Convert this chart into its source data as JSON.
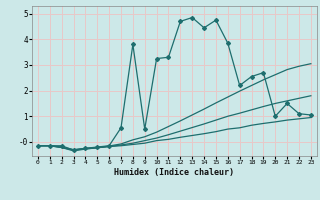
{
  "title": "",
  "xlabel": "Humidex (Indice chaleur)",
  "ylabel": "",
  "bg_color": "#cce8e8",
  "grid_color": "#e8c8c8",
  "line_color": "#1e6e6e",
  "xlim": [
    -0.5,
    23.5
  ],
  "ylim": [
    -0.55,
    5.3
  ],
  "yticks": [
    0,
    1,
    2,
    3,
    4,
    5
  ],
  "ytick_labels": [
    "-0",
    "1",
    "2",
    "3",
    "4",
    "5"
  ],
  "xticks": [
    0,
    1,
    2,
    3,
    4,
    5,
    6,
    7,
    8,
    9,
    10,
    11,
    12,
    13,
    14,
    15,
    16,
    17,
    18,
    19,
    20,
    21,
    22,
    23
  ],
  "series": [
    {
      "x": [
        0,
        1,
        2,
        3,
        4,
        5,
        6,
        7,
        8,
        9,
        10,
        11,
        12,
        13,
        14,
        15,
        16,
        17,
        18,
        19,
        20,
        21,
        22,
        23
      ],
      "y": [
        -0.15,
        -0.15,
        -0.2,
        -0.3,
        -0.25,
        -0.22,
        -0.18,
        -0.15,
        -0.1,
        -0.05,
        0.05,
        0.1,
        0.18,
        0.25,
        0.32,
        0.4,
        0.5,
        0.55,
        0.65,
        0.72,
        0.78,
        0.85,
        0.9,
        0.95
      ],
      "marker": null,
      "linewidth": 0.9
    },
    {
      "x": [
        0,
        1,
        2,
        3,
        4,
        5,
        6,
        7,
        8,
        9,
        10,
        11,
        12,
        13,
        14,
        15,
        16,
        17,
        18,
        19,
        20,
        21,
        22,
        23
      ],
      "y": [
        -0.15,
        -0.15,
        -0.22,
        -0.32,
        -0.27,
        -0.23,
        -0.18,
        -0.12,
        -0.05,
        0.05,
        0.15,
        0.28,
        0.42,
        0.56,
        0.7,
        0.85,
        1.0,
        1.12,
        1.25,
        1.38,
        1.5,
        1.6,
        1.7,
        1.8
      ],
      "marker": null,
      "linewidth": 0.9
    },
    {
      "x": [
        0,
        1,
        2,
        3,
        4,
        5,
        6,
        7,
        8,
        9,
        10,
        11,
        12,
        13,
        14,
        15,
        16,
        17,
        18,
        19,
        20,
        21,
        22,
        23
      ],
      "y": [
        -0.15,
        -0.15,
        -0.22,
        -0.35,
        -0.28,
        -0.23,
        -0.16,
        -0.08,
        0.08,
        0.2,
        0.38,
        0.6,
        0.82,
        1.05,
        1.28,
        1.52,
        1.75,
        1.98,
        2.2,
        2.42,
        2.62,
        2.82,
        2.95,
        3.05
      ],
      "marker": null,
      "linewidth": 0.9
    },
    {
      "x": [
        0,
        1,
        2,
        3,
        4,
        5,
        6,
        7,
        8,
        9,
        10,
        11,
        12,
        13,
        14,
        15,
        16,
        17,
        18,
        19,
        20,
        21,
        22,
        23
      ],
      "y": [
        -0.15,
        -0.15,
        -0.15,
        -0.32,
        -0.25,
        -0.2,
        -0.15,
        0.55,
        3.8,
        0.5,
        3.25,
        3.3,
        4.7,
        4.85,
        4.45,
        4.75,
        3.85,
        2.2,
        2.55,
        2.7,
        1.0,
        1.5,
        1.1,
        1.05
      ],
      "marker": "D",
      "linewidth": 0.9
    }
  ]
}
